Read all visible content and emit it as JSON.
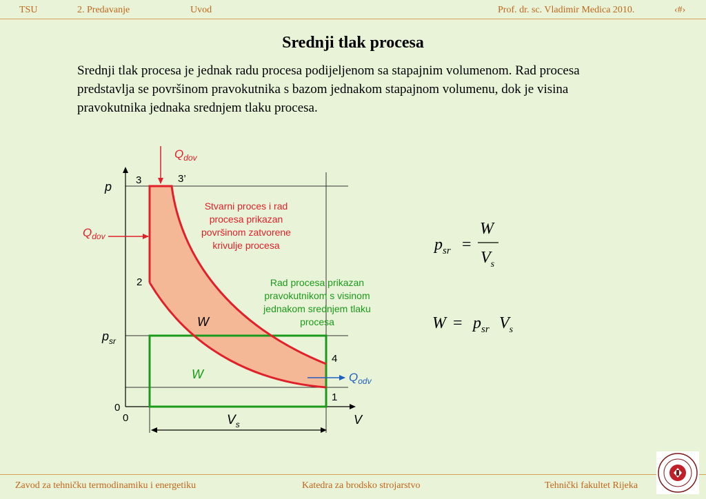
{
  "header": {
    "left1": "TSU",
    "left2": "2. Predavanje",
    "left3": "Uvod",
    "right": "Prof. dr. sc. Vladimir Medica   2010.",
    "slide_num": "‹#›"
  },
  "title": "Srednji tlak procesa",
  "paragraph": "Srednji tlak procesa je jednak radu procesa podijeljenom sa stapajnim volumenom. Rad procesa predstavlja se površinom pravokutnika s bazom jednakom stapajnom volumenu, dok je visina pravokutnika jednaka srednjem tlaku procesa.",
  "diagram": {
    "q_dov_top": {
      "main": "Q",
      "sub": "dov"
    },
    "q_dov_left": {
      "main": "Q",
      "sub": "dov"
    },
    "q_odv": {
      "main": "Q",
      "sub": "odv"
    },
    "axis_p": "p",
    "axis_v": "V",
    "label_psr": {
      "main": "p",
      "sub": "sr"
    },
    "label_vs": {
      "main": "V",
      "sub": "s"
    },
    "point_3": "3",
    "point_3prime": "3’",
    "point_2": "2",
    "point_4": "4",
    "point_1": "1",
    "origin_y": "0",
    "origin_x": "0",
    "work_red": "W",
    "work_green": "W",
    "red_note": [
      "Stvarni proces i rad",
      "procesa prikazan",
      "površinom zatvorene",
      "krivulje procesa"
    ],
    "green_note": [
      "Rad procesa prikazan",
      "pravokutnikom s visinom",
      "jednakom srednjem tlaku",
      "procesa"
    ]
  },
  "formulas": {
    "f1_lhs": {
      "main": "p",
      "sub": "sr"
    },
    "f1_eq": "=",
    "f1_num": "W",
    "f1_den": {
      "main": "V",
      "sub": "s"
    },
    "f2_lhs": "W",
    "f2_eq": "=",
    "f2_p": {
      "main": "p",
      "sub": "sr"
    },
    "f2_v": {
      "main": "V",
      "sub": "s"
    }
  },
  "footer": {
    "left": "Zavod za tehničku termodinamiku i energetiku",
    "center": "Katedra za brodsko strojarstvo",
    "right": "Tehnički fakultet Rijeka"
  },
  "colors": {
    "background": "#e9f3d7",
    "header_text": "#c0661b",
    "red": "#e0202a",
    "fill": "#f4b896",
    "green": "#1a9a1a",
    "blue": "#1e5fbf"
  }
}
